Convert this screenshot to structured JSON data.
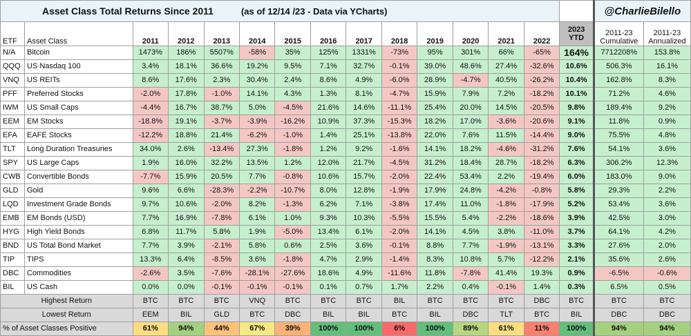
{
  "title": "Asset Class Total Returns Since 2011",
  "subtitle": "(as of 12/14 /23 - Data via YCharts)",
  "handle": "@CharlieBilello",
  "headers": {
    "etf": "ETF",
    "asset": "Asset Class",
    "years": [
      "2011",
      "2012",
      "2013",
      "2014",
      "2015",
      "2016",
      "2017",
      "2018",
      "2019",
      "2020",
      "2021",
      "2022"
    ],
    "ytd_year": "2023",
    "ytd_label": "YTD",
    "cum_top": "2011-23",
    "cum_label": "Cumulative",
    "ann_top": "2011-23",
    "ann_label": "Annualized"
  },
  "chart_data": {
    "type": "table",
    "title": "Asset Class Total Returns Since 2011",
    "rows": [
      {
        "etf": "N/A",
        "name": "Bitcoin",
        "years": [
          "1473%",
          "186%",
          "5507%",
          "-58%",
          "35%",
          "125%",
          "1331%",
          "-73%",
          "95%",
          "301%",
          "66%",
          "-65%"
        ],
        "ytd": "164%",
        "cum": "7712208%",
        "ann": "153.8%"
      },
      {
        "etf": "QQQ",
        "name": "US Nasdaq 100",
        "years": [
          "3.4%",
          "18.1%",
          "36.6%",
          "19.2%",
          "9.5%",
          "7.1%",
          "32.7%",
          "-0.1%",
          "39.0%",
          "48.6%",
          "27.4%",
          "-32.6%"
        ],
        "ytd": "10.6%",
        "cum": "506.3%",
        "ann": "16.1%"
      },
      {
        "etf": "VNQ",
        "name": "US REITs",
        "years": [
          "8.6%",
          "17.6%",
          "2.3%",
          "30.4%",
          "2.4%",
          "8.6%",
          "4.9%",
          "-6.0%",
          "28.9%",
          "-4.7%",
          "40.5%",
          "-26.2%"
        ],
        "ytd": "10.4%",
        "cum": "162.8%",
        "ann": "8.3%"
      },
      {
        "etf": "PFF",
        "name": "Preferred Stocks",
        "years": [
          "-2.0%",
          "17.8%",
          "-1.0%",
          "14.1%",
          "4.3%",
          "1.3%",
          "8.1%",
          "-4.7%",
          "15.9%",
          "7.9%",
          "7.2%",
          "-18.2%"
        ],
        "ytd": "10.1%",
        "cum": "71.2%",
        "ann": "4.6%"
      },
      {
        "etf": "IWM",
        "name": "US Small Caps",
        "years": [
          "-4.4%",
          "16.7%",
          "38.7%",
          "5.0%",
          "-4.5%",
          "21.6%",
          "14.6%",
          "-11.1%",
          "25.4%",
          "20.0%",
          "14.5%",
          "-20.5%"
        ],
        "ytd": "9.8%",
        "cum": "189.4%",
        "ann": "9.2%"
      },
      {
        "etf": "EEM",
        "name": "EM Stocks",
        "years": [
          "-18.8%",
          "19.1%",
          "-3.7%",
          "-3.9%",
          "-16.2%",
          "10.9%",
          "37.3%",
          "-15.3%",
          "18.2%",
          "17.0%",
          "-3.6%",
          "-20.6%"
        ],
        "ytd": "9.1%",
        "cum": "11.8%",
        "ann": "0.9%"
      },
      {
        "etf": "EFA",
        "name": "EAFE Stocks",
        "years": [
          "-12.2%",
          "18.8%",
          "21.4%",
          "-6.2%",
          "-1.0%",
          "1.4%",
          "25.1%",
          "-13.8%",
          "22.0%",
          "7.6%",
          "11.5%",
          "-14.4%"
        ],
        "ytd": "9.0%",
        "cum": "75.5%",
        "ann": "4.8%"
      },
      {
        "etf": "TLT",
        "name": "Long Duration Treasuries",
        "years": [
          "34.0%",
          "2.6%",
          "-13.4%",
          "27.3%",
          "-1.8%",
          "1.2%",
          "9.2%",
          "-1.6%",
          "14.1%",
          "18.2%",
          "-4.6%",
          "-31.2%"
        ],
        "ytd": "7.6%",
        "cum": "54.1%",
        "ann": "3.6%"
      },
      {
        "etf": "SPY",
        "name": "US Large Caps",
        "years": [
          "1.9%",
          "16.0%",
          "32.2%",
          "13.5%",
          "1.2%",
          "12.0%",
          "21.7%",
          "-4.5%",
          "31.2%",
          "18.4%",
          "28.7%",
          "-18.2%"
        ],
        "ytd": "6.3%",
        "cum": "306.2%",
        "ann": "12.3%"
      },
      {
        "etf": "CWB",
        "name": "Convertible Bonds",
        "years": [
          "-7.7%",
          "15.9%",
          "20.5%",
          "7.7%",
          "-0.8%",
          "10.6%",
          "15.7%",
          "-2.0%",
          "22.4%",
          "53.4%",
          "2.2%",
          "-19.4%"
        ],
        "ytd": "6.0%",
        "cum": "183.0%",
        "ann": "9.0%"
      },
      {
        "etf": "GLD",
        "name": "Gold",
        "years": [
          "9.6%",
          "6.6%",
          "-28.3%",
          "-2.2%",
          "-10.7%",
          "8.0%",
          "12.8%",
          "-1.9%",
          "17.9%",
          "24.8%",
          "-4.2%",
          "-0.8%"
        ],
        "ytd": "5.8%",
        "cum": "29.3%",
        "ann": "2.2%"
      },
      {
        "etf": "LQD",
        "name": "Investment Grade Bonds",
        "years": [
          "9.7%",
          "10.6%",
          "-2.0%",
          "8.2%",
          "-1.3%",
          "6.2%",
          "7.1%",
          "-3.8%",
          "17.4%",
          "11.0%",
          "-1.8%",
          "-17.9%"
        ],
        "ytd": "5.2%",
        "cum": "53.4%",
        "ann": "3.6%"
      },
      {
        "etf": "EMB",
        "name": "EM Bonds (USD)",
        "years": [
          "7.7%",
          "16.9%",
          "-7.8%",
          "6.1%",
          "1.0%",
          "9.3%",
          "10.3%",
          "-5.5%",
          "15.5%",
          "5.4%",
          "-2.2%",
          "-18.6%"
        ],
        "ytd": "3.9%",
        "cum": "42.5%",
        "ann": "3.0%"
      },
      {
        "etf": "HYG",
        "name": "High Yield Bonds",
        "years": [
          "6.8%",
          "11.7%",
          "5.8%",
          "1.9%",
          "-5.0%",
          "13.4%",
          "6.1%",
          "-2.0%",
          "14.1%",
          "4.5%",
          "3.8%",
          "-11.0%"
        ],
        "ytd": "3.7%",
        "cum": "64.1%",
        "ann": "4.2%"
      },
      {
        "etf": "BND",
        "name": "US Total Bond Market",
        "years": [
          "7.7%",
          "3.9%",
          "-2.1%",
          "5.8%",
          "0.6%",
          "2.5%",
          "3.6%",
          "-0.1%",
          "8.8%",
          "7.7%",
          "-1.9%",
          "-13.1%"
        ],
        "ytd": "3.3%",
        "cum": "27.6%",
        "ann": "2.0%"
      },
      {
        "etf": "TIP",
        "name": "TIPS",
        "years": [
          "13.3%",
          "6.4%",
          "-8.5%",
          "3.6%",
          "-1.8%",
          "4.7%",
          "2.9%",
          "-1.4%",
          "8.3%",
          "10.8%",
          "5.7%",
          "-12.2%"
        ],
        "ytd": "2.1%",
        "cum": "35.6%",
        "ann": "2.6%"
      },
      {
        "etf": "DBC",
        "name": "Commodities",
        "years": [
          "-2.6%",
          "3.5%",
          "-7.6%",
          "-28.1%",
          "-27.6%",
          "18.6%",
          "4.9%",
          "-11.6%",
          "11.8%",
          "-7.8%",
          "41.4%",
          "19.3%"
        ],
        "ytd": "0.9%",
        "cum": "-6.5%",
        "ann": "-0.6%"
      },
      {
        "etf": "BIL",
        "name": "US Cash",
        "years": [
          "0.0%",
          "0.0%",
          "-0.1%",
          "-0.1%",
          "-0.1%",
          "0.1%",
          "0.7%",
          "1.7%",
          "2.2%",
          "0.4%",
          "-0.1%",
          "1.4%"
        ],
        "ytd": "0.3%",
        "cum": "6.5%",
        "ann": "0.5%"
      }
    ],
    "highest": {
      "label": "Highest Return",
      "values": [
        "BTC",
        "BTC",
        "BTC",
        "VNQ",
        "BTC",
        "BTC",
        "BTC",
        "BIL",
        "BTC",
        "BTC",
        "BTC",
        "DBC",
        "BTC",
        "BTC",
        "BTC"
      ]
    },
    "lowest": {
      "label": "Lowest Return",
      "values": [
        "EEM",
        "BIL",
        "GLD",
        "BTC",
        "DBC",
        "BIL",
        "BIL",
        "BTC",
        "BIL",
        "DBC",
        "TLT",
        "BTC",
        "BIL",
        "DBC",
        "DBC"
      ]
    },
    "positive": {
      "label": "% of Asset Classes Positive",
      "values": [
        "61%",
        "94%",
        "44%",
        "67%",
        "39%",
        "100%",
        "100%",
        "6%",
        "100%",
        "89%",
        "61%",
        "11%",
        "100%",
        "94%",
        "94%"
      ]
    }
  },
  "colors": {
    "positive": "#c6efce",
    "negative": "#f4c7c5",
    "header_bg": "#e8f4f8",
    "ytd_header": "#bfbfbf",
    "summary_gray": "#d9d9d9",
    "pct_scale": {
      "6%": "#f8696b",
      "11%": "#f8806d",
      "39%": "#fbb276",
      "44%": "#fcc27a",
      "61%": "#fedd81",
      "67%": "#f5e983",
      "89%": "#b6d77f",
      "94%": "#a3d17e",
      "100%": "#63be7b"
    }
  }
}
